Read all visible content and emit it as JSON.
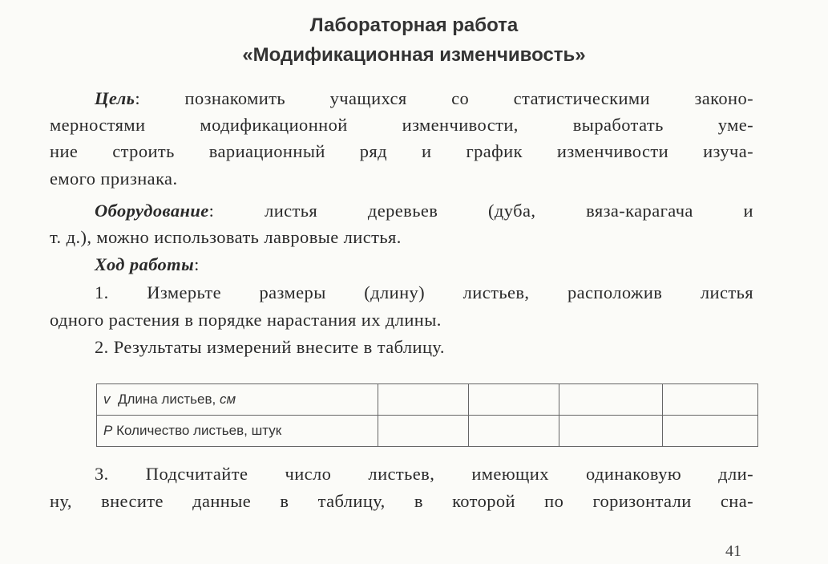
{
  "title": {
    "line1": "Лабораторная работа",
    "line2": "«Модификационная изменчивость»"
  },
  "goal": {
    "label": "Цель",
    "lines": [
      ": познакомить учащихся со статистическими законо-",
      "мерностями модификационной изменчивости, выработать уме-",
      "ние строить вариационный ряд и график изменчивости изуча-",
      "емого признака."
    ]
  },
  "equipment": {
    "label": "Оборудование",
    "lines": [
      ": листья деревьев (дуба, вяза-карагача и",
      "т. д.), можно использовать лавровые листья."
    ]
  },
  "procedure": {
    "label": "Ход работы",
    "label_suffix": ":",
    "step1": [
      "1. Измерьте размеры (длину) листьев, расположив листья",
      "одного растения в порядке нарастания их длины."
    ],
    "step2": "2. Результаты измерений внесите в таблицу.",
    "step3": [
      "3. Подсчитайте число листьев, имеющих одинаковую дли-",
      "ну, внесите данные в таблицу, в которой по горизонтали сна-"
    ]
  },
  "table": {
    "rows": [
      {
        "symbol": "v",
        "label": "Длина листьев, ",
        "unit": "см"
      },
      {
        "symbol": "P",
        "label": "Количество листьев, штук",
        "unit": ""
      }
    ]
  },
  "page_number": "41"
}
